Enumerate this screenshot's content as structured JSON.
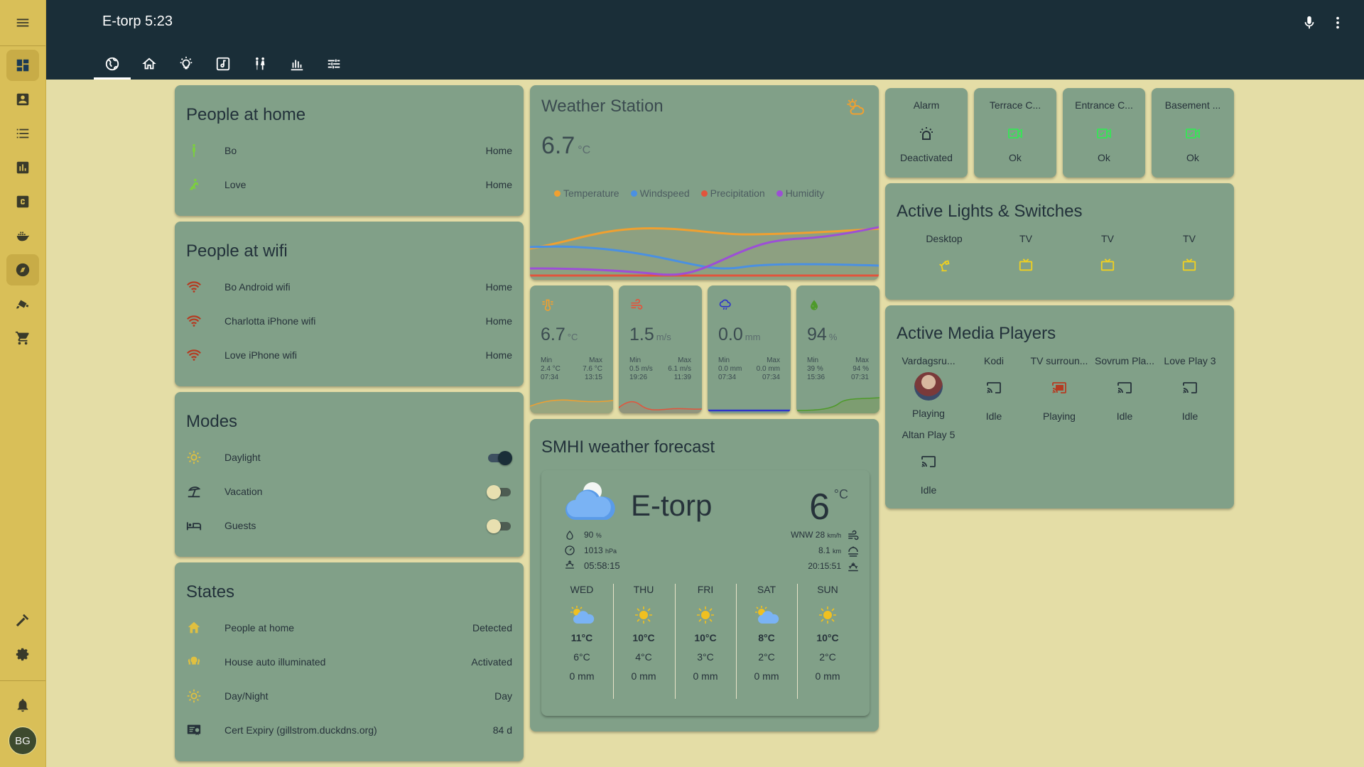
{
  "header": {
    "title": "E-torp 5:23"
  },
  "sidebar": {
    "avatar": "BG"
  },
  "people_home": {
    "title": "People at home",
    "rows": [
      {
        "name": "Bo",
        "state": "Home"
      },
      {
        "name": "Love",
        "state": "Home"
      }
    ]
  },
  "people_wifi": {
    "title": "People at wifi",
    "rows": [
      {
        "name": "Bo Android wifi",
        "state": "Home"
      },
      {
        "name": "Charlotta iPhone wifi",
        "state": "Home"
      },
      {
        "name": "Love iPhone wifi",
        "state": "Home"
      }
    ]
  },
  "modes": {
    "title": "Modes",
    "rows": [
      {
        "name": "Daylight",
        "on": true
      },
      {
        "name": "Vacation",
        "on": false
      },
      {
        "name": "Guests",
        "on": false
      }
    ]
  },
  "states": {
    "title": "States",
    "rows": [
      {
        "name": "People at home",
        "state": "Detected"
      },
      {
        "name": "House auto illuminated",
        "state": "Activated"
      },
      {
        "name": "Day/Night",
        "state": "Day"
      },
      {
        "name": "Cert Expiry (gillstrom.duckdns.org)",
        "state": "84 d"
      }
    ]
  },
  "weather_station": {
    "title": "Weather Station",
    "value": "6.7",
    "unit": "°C",
    "legend": [
      "Temperature",
      "Windspeed",
      "Precipitation",
      "Humidity"
    ],
    "colors": {
      "temperature": "#f0a030",
      "windspeed": "#4a90e2",
      "precipitation": "#e2543c",
      "humidity": "#9c4fd6"
    }
  },
  "sensors": [
    {
      "value": "6.7",
      "unit": "°C",
      "min_label": "Min",
      "max_label": "Max",
      "min": "2.4 °C",
      "max": "7.6 °C",
      "min_time": "07:34",
      "max_time": "13:15"
    },
    {
      "value": "1.5",
      "unit": "m/s",
      "min_label": "Min",
      "max_label": "Max",
      "min": "0.5 m/s",
      "max": "6.1 m/s",
      "min_time": "19:26",
      "max_time": "11:39"
    },
    {
      "value": "0.0",
      "unit": "mm",
      "min_label": "Min",
      "max_label": "Max",
      "min": "0.0 mm",
      "max": "0.0 mm",
      "min_time": "07:34",
      "max_time": "07:34"
    },
    {
      "value": "94",
      "unit": "%",
      "min_label": "Min",
      "max_label": "Max",
      "min": "39 %",
      "max": "94 %",
      "min_time": "15:36",
      "max_time": "07:31"
    }
  ],
  "forecast": {
    "title": "SMHI weather forecast",
    "location": "E-torp",
    "temp": "6",
    "temp_unit": "°C",
    "humidity": "90",
    "humidity_unit": "%",
    "pressure": "1013",
    "pressure_unit": "hPa",
    "sunrise": "05:58:15",
    "wind": "WNW 28",
    "wind_unit": "km/h",
    "visibility": "8.1",
    "visibility_unit": "km",
    "sunset": "20:15:51",
    "days": [
      {
        "name": "WED",
        "icon": "partly-cloudy",
        "high": "11°C",
        "low": "6°C",
        "precip": "0 mm"
      },
      {
        "name": "THU",
        "icon": "sunny",
        "high": "10°C",
        "low": "4°C",
        "precip": "0 mm"
      },
      {
        "name": "FRI",
        "icon": "sunny",
        "high": "10°C",
        "low": "3°C",
        "precip": "0 mm"
      },
      {
        "name": "SAT",
        "icon": "partly-cloudy",
        "high": "8°C",
        "low": "2°C",
        "precip": "0 mm"
      },
      {
        "name": "SUN",
        "icon": "sunny",
        "high": "10°C",
        "low": "2°C",
        "precip": "0 mm"
      }
    ]
  },
  "tiles": [
    {
      "name": "Alarm",
      "state": "Deactivated",
      "icon": "alarm-light-icon"
    },
    {
      "name": "Terrace C...",
      "state": "Ok",
      "icon": "video-icon"
    },
    {
      "name": "Entrance C...",
      "state": "Ok",
      "icon": "video-icon"
    },
    {
      "name": "Basement ...",
      "state": "Ok",
      "icon": "video-icon"
    }
  ],
  "lights": {
    "title": "Active Lights & Switches",
    "items": [
      {
        "name": "Desktop",
        "icon": "desk-lamp-icon"
      },
      {
        "name": "TV",
        "icon": "tv-icon"
      },
      {
        "name": "TV",
        "icon": "tv-icon"
      },
      {
        "name": "TV",
        "icon": "tv-icon"
      }
    ]
  },
  "media": {
    "title": "Active Media Players",
    "items": [
      {
        "name": "Vardagsru...",
        "state": "Playing"
      },
      {
        "name": "Kodi",
        "state": "Idle"
      },
      {
        "name": "TV surroun...",
        "state": "Playing"
      },
      {
        "name": "Sovrum Pla...",
        "state": "Idle"
      },
      {
        "name": "Love Play 3",
        "state": "Idle"
      },
      {
        "name": "Altan Play 5",
        "state": "Idle"
      }
    ]
  }
}
